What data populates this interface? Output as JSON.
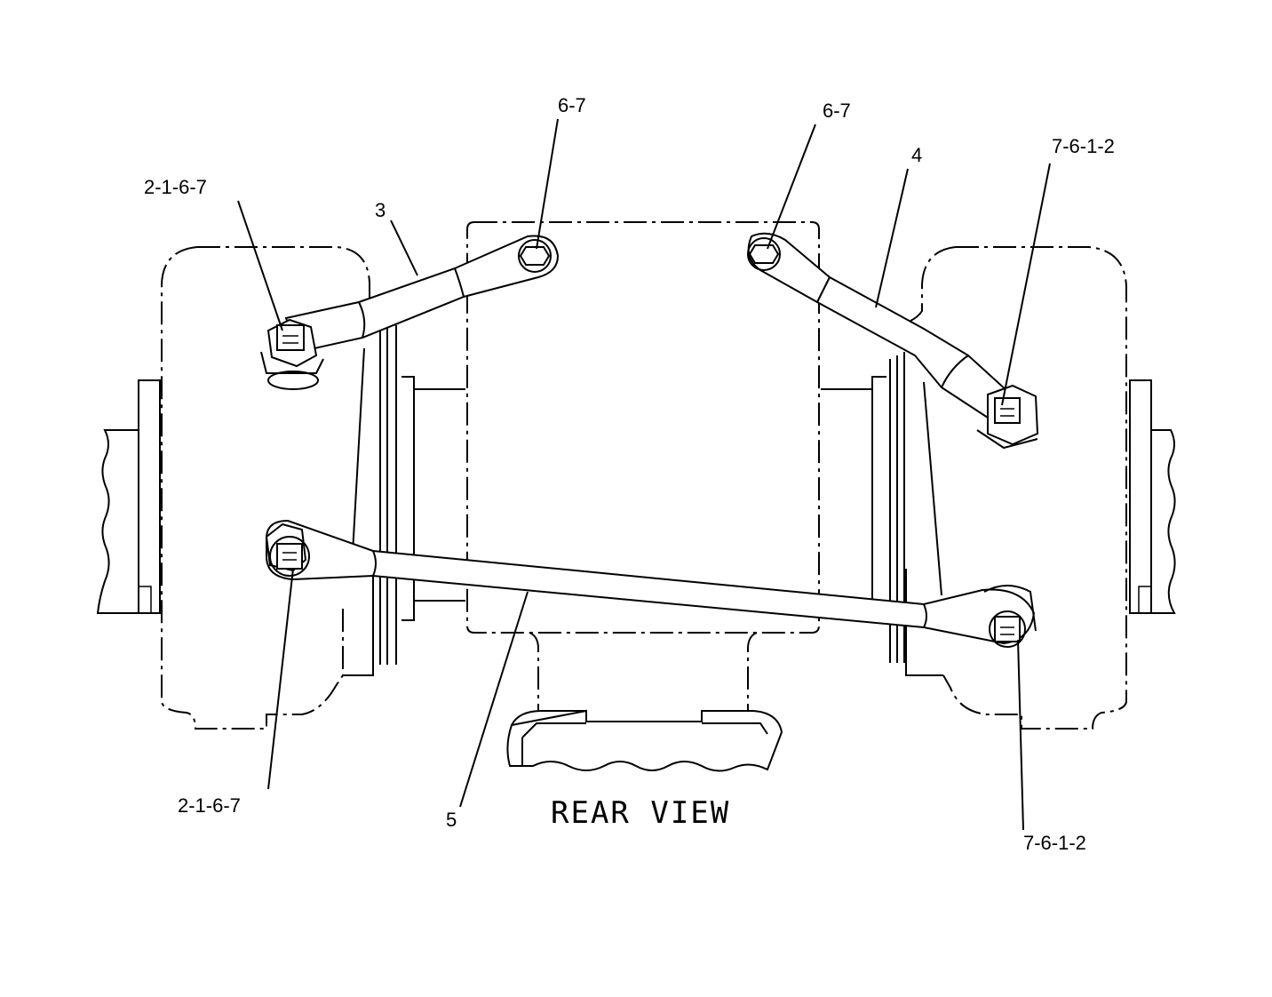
{
  "diagram": {
    "view_title": "REAR VIEW",
    "callouts": {
      "bolt_top_center": "6-7",
      "bolt_top_right": "6-7",
      "link_upper_right": "4",
      "bolt_right_upper": "7-6-1-2",
      "bolt_left_upper": "2-1-6-7",
      "link_upper_left": "3",
      "bolt_left_lower": "2-1-6-7",
      "link_lower": "5",
      "bolt_right_lower": "7-6-1-2"
    }
  }
}
